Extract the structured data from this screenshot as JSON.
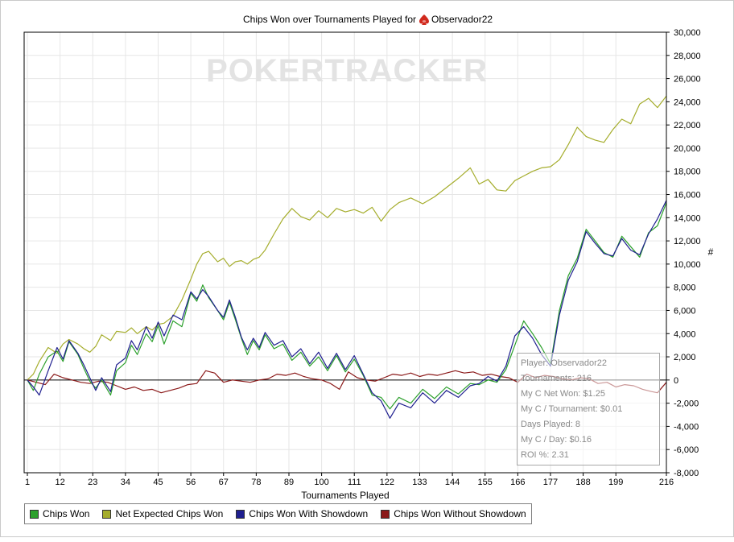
{
  "chart_data": {
    "type": "line",
    "title": "Chips Won over Tournaments Played for",
    "player_name": "Observador22",
    "watermark": "POKERTRACKER",
    "xlabel": "Tournaments Played",
    "ylabel": "#",
    "xlim": [
      1,
      216
    ],
    "ylim": [
      -8000,
      30000
    ],
    "x_ticks": [
      "1",
      "12",
      "23",
      "34",
      "45",
      "56",
      "67",
      "78",
      "89",
      "100",
      "111",
      "122",
      "133",
      "144",
      "155",
      "166",
      "177",
      "188",
      "199",
      "216"
    ],
    "y_ticks": [
      "30,000",
      "28,000",
      "26,000",
      "24,000",
      "22,000",
      "20,000",
      "18,000",
      "16,000",
      "14,000",
      "12,000",
      "10,000",
      "8,000",
      "6,000",
      "4,000",
      "2,000",
      "0",
      "-2,000",
      "-4,000",
      "-6,000",
      "-8,000"
    ],
    "series": [
      {
        "name": "Chips Won",
        "color": "#2ca02c",
        "x": [
          1,
          3,
          5,
          8,
          11,
          13,
          15,
          18,
          20,
          22,
          24,
          26,
          29,
          31,
          34,
          36,
          38,
          41,
          43,
          45,
          47,
          50,
          53,
          56,
          58,
          60,
          62,
          65,
          67,
          69,
          71,
          73,
          75,
          77,
          79,
          81,
          84,
          87,
          90,
          93,
          96,
          99,
          102,
          105,
          108,
          111,
          114,
          117,
          120,
          123,
          126,
          130,
          134,
          138,
          142,
          146,
          150,
          153,
          156,
          159,
          162,
          165,
          168,
          171,
          174,
          177,
          180,
          183,
          186,
          189,
          192,
          195,
          198,
          201,
          204,
          207,
          210,
          213,
          216
        ],
        "y": [
          0,
          -900,
          500,
          2000,
          2500,
          1600,
          3300,
          2200,
          1000,
          -100,
          -700,
          0,
          -1300,
          800,
          1500,
          3000,
          2200,
          4000,
          3300,
          4700,
          3100,
          5100,
          4600,
          7500,
          6800,
          8200,
          7100,
          6000,
          5200,
          6700,
          5200,
          3600,
          2200,
          3400,
          2600,
          3900,
          2700,
          3100,
          1700,
          2400,
          1200,
          2000,
          800,
          2100,
          700,
          1800,
          400,
          -1300,
          -1500,
          -2500,
          -1500,
          -2000,
          -800,
          -1600,
          -600,
          -1200,
          -300,
          -400,
          0,
          -200,
          900,
          3000,
          5100,
          4000,
          2800,
          1400,
          6000,
          9000,
          10500,
          13000,
          12000,
          11000,
          10600,
          12400,
          11500,
          10600,
          12700,
          13300,
          15300
        ]
      },
      {
        "name": "Net Expected Chips Won",
        "color": "#a5ad2c",
        "x": [
          1,
          3,
          5,
          8,
          11,
          13,
          15,
          18,
          20,
          22,
          24,
          26,
          29,
          31,
          34,
          36,
          38,
          41,
          43,
          45,
          47,
          50,
          53,
          56,
          58,
          60,
          62,
          65,
          67,
          69,
          71,
          73,
          75,
          77,
          79,
          81,
          84,
          87,
          90,
          93,
          96,
          99,
          102,
          105,
          108,
          111,
          114,
          117,
          120,
          123,
          126,
          130,
          134,
          138,
          142,
          146,
          150,
          153,
          156,
          159,
          162,
          165,
          168,
          171,
          174,
          177,
          180,
          183,
          186,
          189,
          192,
          195,
          198,
          201,
          204,
          207,
          210,
          213,
          216
        ],
        "y": [
          0,
          500,
          1600,
          2800,
          2300,
          3100,
          3500,
          3100,
          2700,
          2400,
          2900,
          3900,
          3400,
          4200,
          4100,
          4500,
          4000,
          4600,
          4300,
          4800,
          4900,
          5500,
          6900,
          8700,
          10000,
          10900,
          11100,
          10200,
          10500,
          9800,
          10200,
          10300,
          10000,
          10400,
          10600,
          11200,
          12600,
          13900,
          14800,
          14100,
          13800,
          14600,
          14000,
          14800,
          14500,
          14700,
          14400,
          14900,
          13700,
          14700,
          15300,
          15700,
          15200,
          15800,
          16600,
          17400,
          18300,
          16900,
          17300,
          16400,
          16300,
          17200,
          17600,
          18000,
          18300,
          18400,
          19000,
          20300,
          21800,
          21000,
          20700,
          20500,
          21600,
          22500,
          22100,
          23800,
          24300,
          23500,
          24500
        ]
      },
      {
        "name": "Chips Won With Showdown",
        "color": "#1f1f8f",
        "x": [
          1,
          3,
          5,
          8,
          11,
          13,
          15,
          18,
          20,
          22,
          24,
          26,
          29,
          31,
          34,
          36,
          38,
          41,
          43,
          45,
          47,
          50,
          53,
          56,
          58,
          60,
          62,
          65,
          67,
          69,
          71,
          73,
          75,
          77,
          79,
          81,
          84,
          87,
          90,
          93,
          96,
          99,
          102,
          105,
          108,
          111,
          114,
          117,
          120,
          123,
          126,
          130,
          134,
          138,
          142,
          146,
          150,
          153,
          156,
          159,
          162,
          165,
          168,
          171,
          174,
          177,
          180,
          183,
          186,
          189,
          192,
          195,
          198,
          201,
          204,
          207,
          210,
          213,
          216
        ],
        "y": [
          0,
          -600,
          -1300,
          800,
          2800,
          1800,
          3400,
          2300,
          1300,
          200,
          -900,
          200,
          -1000,
          1300,
          1900,
          3400,
          2600,
          4600,
          3600,
          5000,
          3800,
          5600,
          5200,
          7600,
          7000,
          7800,
          7200,
          6000,
          5400,
          6900,
          5400,
          3700,
          2600,
          3600,
          2800,
          4100,
          3000,
          3400,
          2000,
          2700,
          1400,
          2400,
          1000,
          2300,
          900,
          2100,
          500,
          -1100,
          -1800,
          -3300,
          -2000,
          -2400,
          -1100,
          -2000,
          -900,
          -1500,
          -500,
          -300,
          300,
          -100,
          1200,
          3800,
          4600,
          3600,
          2200,
          1200,
          5600,
          8600,
          10200,
          12800,
          11800,
          10900,
          10700,
          12200,
          11200,
          10800,
          12600,
          13900,
          15500
        ]
      },
      {
        "name": "Chips Won Without Showdown",
        "color": "#8b1a1a",
        "x": [
          1,
          4,
          7,
          10,
          13,
          16,
          19,
          22,
          25,
          28,
          31,
          34,
          37,
          40,
          43,
          46,
          49,
          52,
          55,
          58,
          61,
          64,
          67,
          70,
          73,
          76,
          79,
          82,
          85,
          88,
          91,
          94,
          97,
          100,
          103,
          106,
          109,
          112,
          115,
          118,
          121,
          124,
          127,
          130,
          133,
          136,
          139,
          142,
          145,
          148,
          151,
          154,
          157,
          160,
          163,
          166,
          169,
          172,
          175,
          178,
          181,
          184,
          187,
          190,
          193,
          196,
          199,
          202,
          205,
          208,
          211,
          213,
          216
        ],
        "y": [
          0,
          -200,
          -400,
          500,
          200,
          0,
          -200,
          -300,
          -100,
          -200,
          -500,
          -800,
          -600,
          -900,
          -800,
          -1100,
          -900,
          -700,
          -400,
          -300,
          800,
          600,
          -200,
          0,
          -100,
          -200,
          0,
          100,
          500,
          400,
          600,
          300,
          100,
          0,
          -300,
          -800,
          700,
          200,
          0,
          -100,
          200,
          500,
          400,
          600,
          300,
          500,
          400,
          600,
          800,
          600,
          700,
          400,
          500,
          300,
          200,
          -200,
          500,
          200,
          400,
          300,
          100,
          0,
          200,
          100,
          -300,
          -200,
          -600,
          -400,
          -500,
          -800,
          -1000,
          -1100,
          -200
        ]
      }
    ],
    "grid": true,
    "legend_position": "bottom"
  },
  "tooltip": {
    "lines": [
      "Player: Observador22",
      "Tournaments: 216",
      "My C Net Won: $1.25",
      "My C / Tournament: $0.01",
      "Days Played: 8",
      "My C / Day: $0.16",
      "ROI %: 2.31"
    ]
  },
  "colors": {
    "grid": "#e6e6e6",
    "zero_line": "#000000",
    "axis": "#000000",
    "watermark": "#e3e3e3",
    "poker_icon": "#d12a1e"
  },
  "icons": {
    "title_icon": "poker-spade-icon"
  }
}
